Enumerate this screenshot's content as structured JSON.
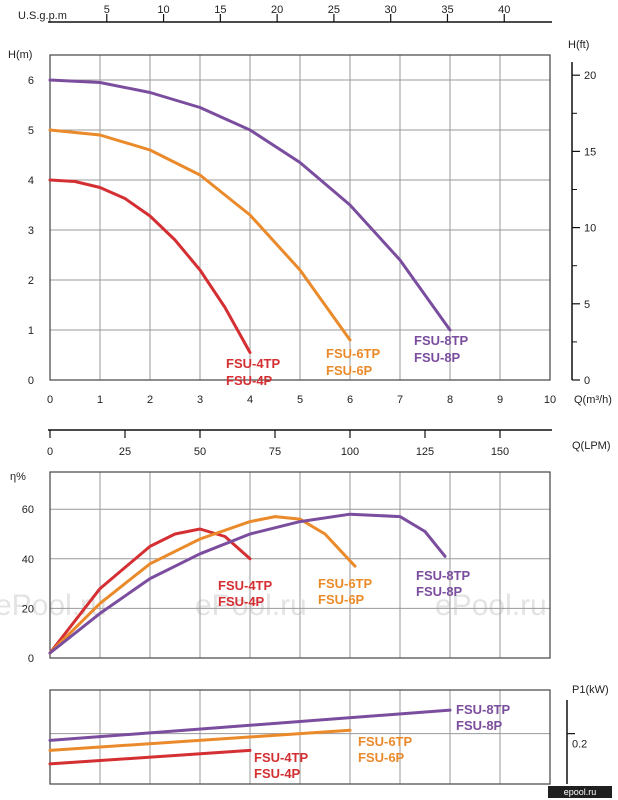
{
  "chart_data": [
    {
      "type": "line",
      "name_panel": "head",
      "top_axis": {
        "label": "U.S.g.p.m",
        "ticks": [
          5,
          10,
          15,
          20,
          25,
          30,
          35,
          40
        ]
      },
      "ylabel_left": "H(m)",
      "ylabel_right": "H(ft)",
      "y_left_ticks": [
        0,
        1,
        2,
        3,
        4,
        5,
        6
      ],
      "y_right_ticks": [
        0,
        5,
        10,
        15,
        20
      ],
      "xlabel_m3h": "Q(m³/h)",
      "x_m3h_ticks": [
        0,
        1,
        2,
        3,
        4,
        5,
        6,
        7,
        8,
        9,
        10
      ],
      "xlabel_lpm": "Q(LPM)",
      "x_lpm_ticks": [
        0,
        25,
        50,
        75,
        100,
        125,
        150
      ],
      "xlim": [
        0,
        10
      ],
      "ylim": [
        0,
        6.5
      ],
      "grid": true,
      "series": [
        {
          "labels": [
            "FSU-4TP",
            "FSU-4P"
          ],
          "color": "#d42f33",
          "x": [
            0,
            0.5,
            1,
            1.5,
            2,
            2.5,
            3,
            3.5,
            4
          ],
          "y": [
            4.0,
            3.97,
            3.85,
            3.63,
            3.28,
            2.8,
            2.2,
            1.45,
            0.55
          ]
        },
        {
          "labels": [
            "FSU-6TP",
            "FSU-6P"
          ],
          "color": "#ea8a2a",
          "x": [
            0,
            1,
            2,
            3,
            4,
            5,
            6
          ],
          "y": [
            5.0,
            4.9,
            4.6,
            4.1,
            3.3,
            2.2,
            0.8
          ]
        },
        {
          "labels": [
            "FSU-8TP",
            "FSU-8P"
          ],
          "color": "#7b4d9e",
          "x": [
            0,
            1,
            2,
            3,
            4,
            5,
            6,
            7,
            8
          ],
          "y": [
            6.0,
            5.95,
            5.75,
            5.45,
            5.0,
            4.35,
            3.5,
            2.4,
            1.0
          ]
        }
      ]
    },
    {
      "type": "line",
      "name_panel": "efficiency",
      "ylabel": "η%",
      "y_ticks": [
        0,
        20,
        40,
        60
      ],
      "xlim": [
        0,
        10
      ],
      "ylim": [
        0,
        75
      ],
      "grid": true,
      "series": [
        {
          "labels": [
            "FSU-4TP",
            "FSU-4P"
          ],
          "color": "#d42f33",
          "x": [
            0,
            1,
            2,
            2.5,
            3,
            3.5,
            4
          ],
          "y": [
            2,
            28,
            45,
            50,
            52,
            49,
            40
          ]
        },
        {
          "labels": [
            "FSU-6TP",
            "FSU-6P"
          ],
          "color": "#ea8a2a",
          "x": [
            0,
            1,
            2,
            3,
            4,
            4.5,
            5,
            5.5,
            6.1
          ],
          "y": [
            2,
            22,
            38,
            48,
            55,
            57,
            56,
            50,
            37
          ]
        },
        {
          "labels": [
            "FSU-8TP",
            "FSU-8P"
          ],
          "color": "#7b4d9e",
          "x": [
            0,
            1,
            2,
            3,
            4,
            5,
            6,
            7,
            7.5,
            7.9
          ],
          "y": [
            2,
            18,
            32,
            42,
            50,
            55,
            58,
            57,
            51,
            41
          ]
        }
      ]
    },
    {
      "type": "line",
      "name_panel": "power",
      "ylabel_right": "P1(kW)",
      "y_ticks": [
        0.2
      ],
      "xlim": [
        0,
        10
      ],
      "ylim": [
        0.125,
        0.265
      ],
      "grid": true,
      "series": [
        {
          "labels": [
            "FSU-4TP",
            "FSU-4P"
          ],
          "color": "#d42f33",
          "x": [
            0,
            4
          ],
          "y": [
            0.155,
            0.175
          ]
        },
        {
          "labels": [
            "FSU-6TP",
            "FSU-6P"
          ],
          "color": "#ea8a2a",
          "x": [
            0,
            6
          ],
          "y": [
            0.175,
            0.205
          ]
        },
        {
          "labels": [
            "FSU-8TP",
            "FSU-8P"
          ],
          "color": "#7b4d9e",
          "x": [
            0,
            8
          ],
          "y": [
            0.19,
            0.235
          ]
        }
      ]
    }
  ],
  "watermarks": [
    "ePool.ru",
    "ePool.ru",
    "ePool.ru"
  ],
  "site_badge": "epool.ru"
}
